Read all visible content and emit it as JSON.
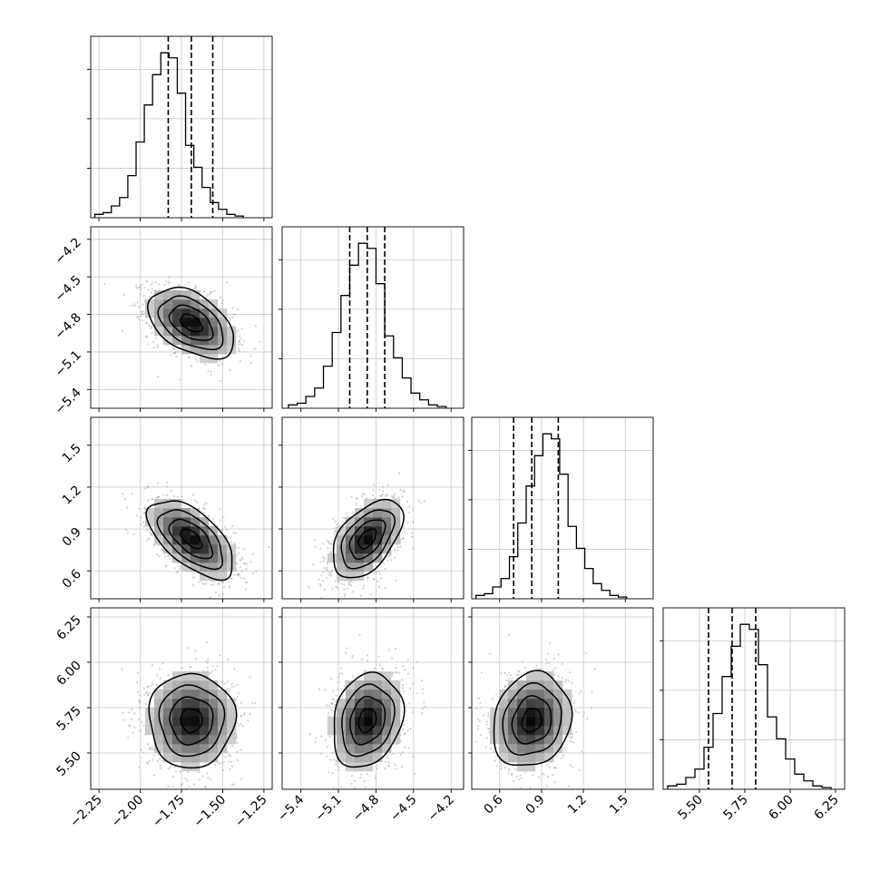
{
  "chart_data": {
    "type": "corner",
    "title": "",
    "parameters": [
      {
        "name": "",
        "truths": [],
        "quantiles": {
          "q16": -1.83,
          "q50": -1.69,
          "q84": -1.56
        },
        "range": [
          -2.3,
          -1.2
        ],
        "ticks": [
          -2.25,
          -2.0,
          -1.75,
          -1.5,
          -1.25
        ],
        "tick_labels": [
          "−2.25",
          "−2.00",
          "−1.75",
          "−1.50",
          "−1.25"
        ],
        "histogram": {
          "bin_start": -2.275,
          "bin_width": 0.05,
          "counts": [
            2,
            3,
            7,
            12,
            25,
            45,
            67,
            85,
            98,
            95,
            74,
            43,
            30,
            18,
            9,
            5,
            2,
            1
          ]
        }
      },
      {
        "name": "",
        "quantiles": {
          "q16": -5.01,
          "q50": -4.87,
          "q84": -4.73
        },
        "range": [
          -5.55,
          -4.1
        ],
        "ticks": [
          -5.4,
          -5.1,
          -4.8,
          -4.5,
          -4.2
        ],
        "tick_labels": [
          "−5.4",
          "−5.1",
          "−4.8",
          "−4.5",
          "−4.2"
        ],
        "histogram": {
          "bin_start": -5.5,
          "bin_width": 0.07,
          "counts": [
            2,
            3,
            7,
            12,
            25,
            45,
            67,
            85,
            98,
            95,
            74,
            43,
            30,
            18,
            9,
            5,
            2,
            1
          ]
        }
      },
      {
        "name": "",
        "quantiles": {
          "q16": 0.7,
          "q50": 0.83,
          "q84": 1.02
        },
        "range": [
          0.4,
          1.7
        ],
        "ticks": [
          0.6,
          0.9,
          1.2,
          1.5
        ],
        "tick_labels": [
          "0.6",
          "0.9",
          "1.2",
          "1.5"
        ],
        "histogram": {
          "bin_start": 0.43,
          "bin_width": 0.06,
          "counts": [
            2,
            3,
            7,
            12,
            25,
            45,
            67,
            85,
            98,
            95,
            74,
            43,
            30,
            18,
            9,
            5,
            2,
            1
          ]
        }
      },
      {
        "name": "",
        "quantiles": {
          "q16": 5.55,
          "q50": 5.68,
          "q84": 5.81
        },
        "range": [
          5.3,
          6.3
        ],
        "ticks": [
          5.5,
          5.75,
          6.0,
          6.25
        ],
        "tick_labels": [
          "5.50",
          "5.75",
          "6.00",
          "6.25"
        ],
        "histogram": {
          "bin_start": 5.325,
          "bin_width": 0.05,
          "counts": [
            2,
            3,
            7,
            12,
            25,
            45,
            67,
            85,
            98,
            95,
            74,
            43,
            30,
            18,
            9,
            5,
            2,
            1
          ]
        }
      }
    ],
    "pairs": [
      {
        "row": 1,
        "col": 0,
        "center": [
          -1.69,
          -4.87
        ],
        "sd": [
          0.13,
          0.14
        ],
        "rho": -0.45
      },
      {
        "row": 2,
        "col": 0,
        "center": [
          -1.69,
          0.83
        ],
        "sd": [
          0.13,
          0.14
        ],
        "rho": -0.6
      },
      {
        "row": 2,
        "col": 1,
        "center": [
          -4.87,
          0.83
        ],
        "sd": [
          0.14,
          0.14
        ],
        "rho": 0.5
      },
      {
        "row": 3,
        "col": 0,
        "center": [
          -1.69,
          5.68
        ],
        "sd": [
          0.13,
          0.13
        ],
        "rho": 0.0
      },
      {
        "row": 3,
        "col": 1,
        "center": [
          -4.87,
          5.68
        ],
        "sd": [
          0.14,
          0.13
        ],
        "rho": 0.2
      },
      {
        "row": 3,
        "col": 2,
        "center": [
          0.83,
          5.68
        ],
        "sd": [
          0.14,
          0.13
        ],
        "rho": 0.15
      }
    ],
    "contour_levels_sigma": [
      0.5,
      1.0,
      1.5,
      2.0
    ],
    "quantile_line_style": "dashed",
    "grid": true,
    "legend": "none"
  }
}
